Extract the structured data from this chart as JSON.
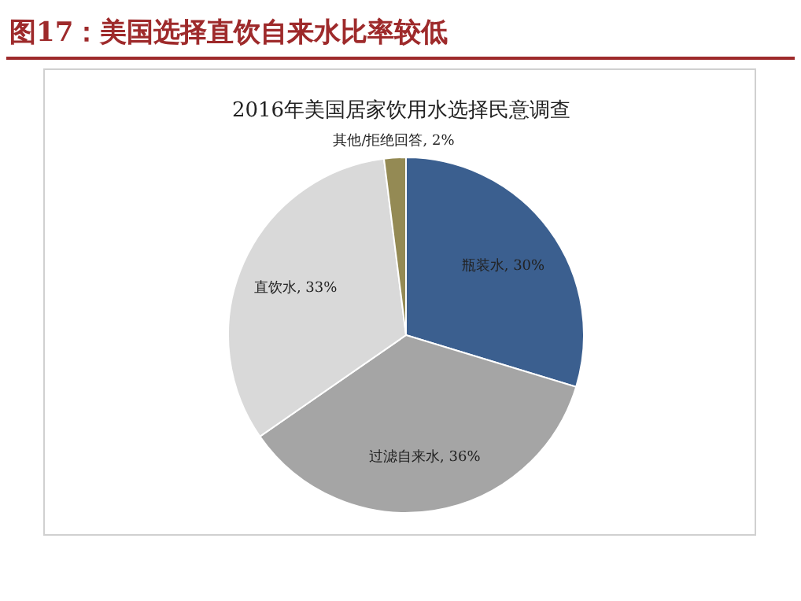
{
  "chart_data": {
    "type": "pie",
    "title": "图17：美国选择直饮自来水比率较低",
    "subtitle": "2016年美国居家饮用水选择民意调查",
    "categories": [
      "瓶装水",
      "过滤自来水",
      "直饮水",
      "其他/拒绝回答"
    ],
    "values": [
      30,
      36,
      33,
      2
    ],
    "colors": [
      "#3b5f8f",
      "#a5a5a5",
      "#d9d9d9",
      "#948a54"
    ],
    "value_labels": [
      ", 30%",
      ", 36%",
      ", 33%",
      ", 2%"
    ]
  }
}
